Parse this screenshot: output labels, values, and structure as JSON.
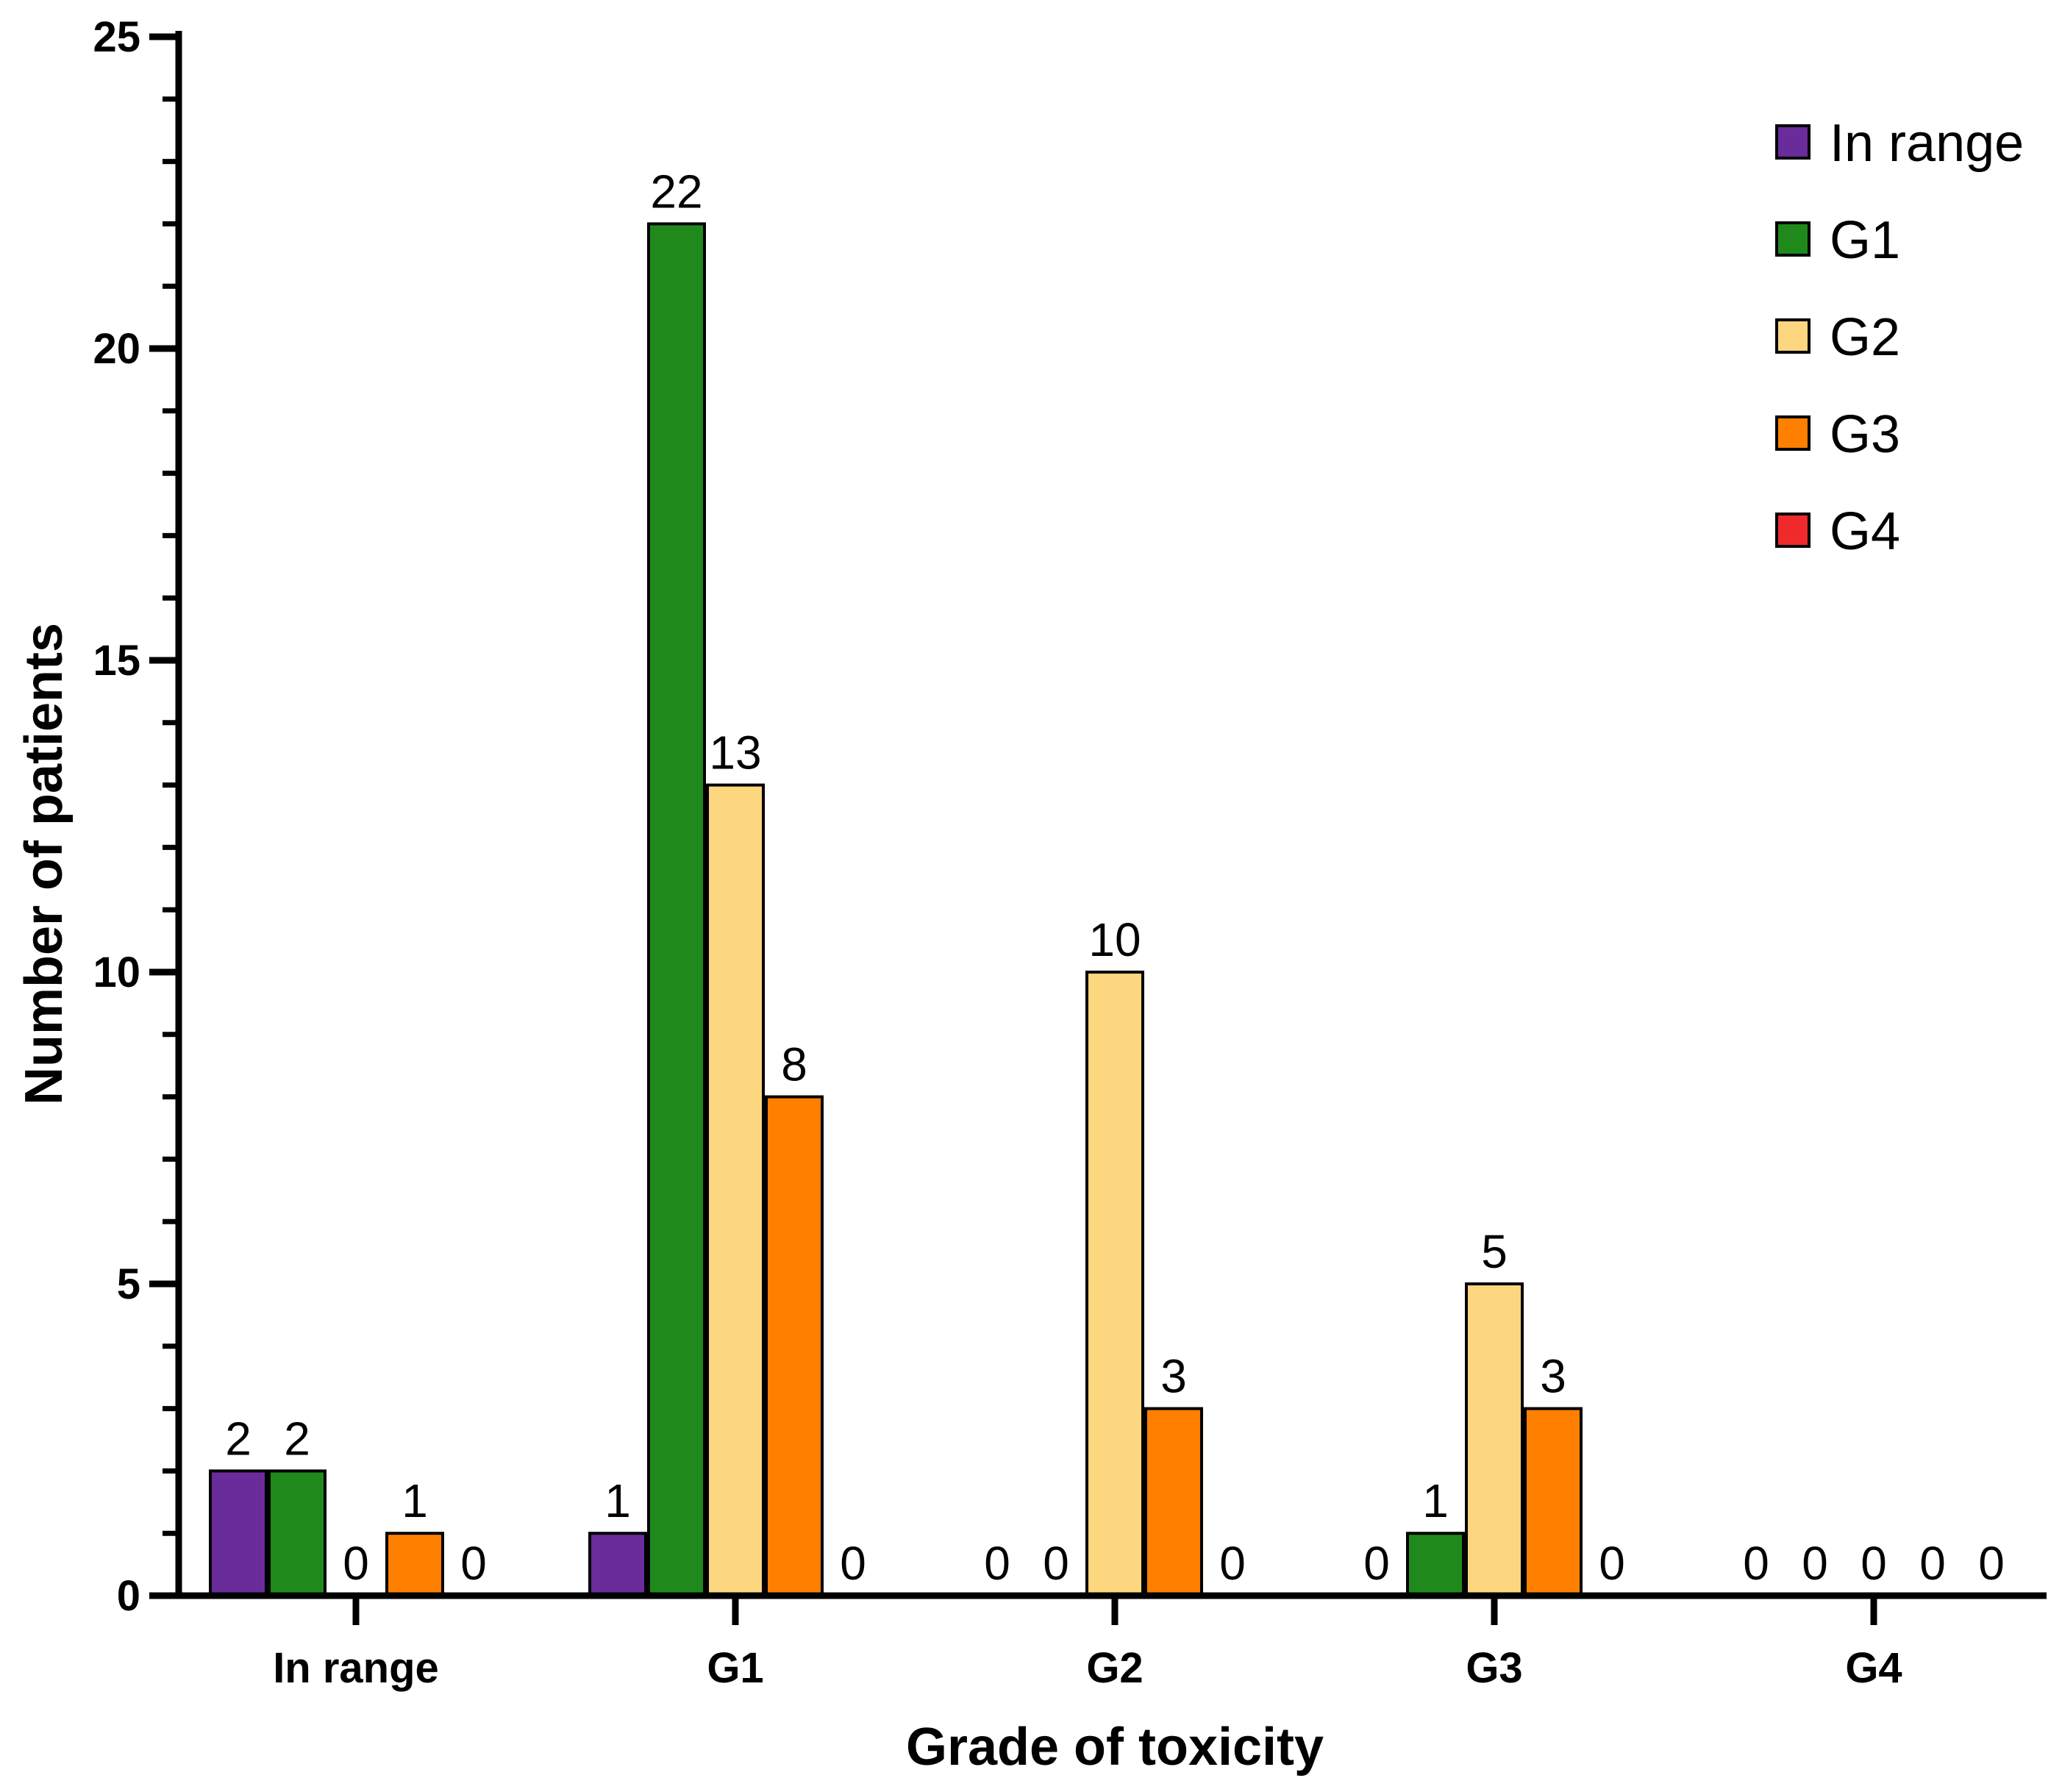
{
  "chart_data": {
    "type": "bar",
    "title": "",
    "xlabel": "Grade of toxicity",
    "ylabel": "Number of patients",
    "ylim": [
      0,
      25
    ],
    "yticks": [
      "0",
      "5",
      "10",
      "15",
      "20",
      "25"
    ],
    "categories": [
      "In range",
      "G1",
      "G2",
      "G3",
      "G4"
    ],
    "legend_position": "top-right",
    "series": [
      {
        "name": "In range",
        "color": "#6a2b9b",
        "values": [
          2,
          1,
          0,
          0,
          0
        ]
      },
      {
        "name": "G1",
        "color": "#1f8a1b",
        "values": [
          2,
          22,
          0,
          1,
          0
        ]
      },
      {
        "name": "G2",
        "color": "#fdd680",
        "values": [
          0,
          13,
          10,
          5,
          0
        ]
      },
      {
        "name": "G3",
        "color": "#ff8000",
        "values": [
          1,
          8,
          3,
          3,
          0
        ]
      },
      {
        "name": "G4",
        "color": "#f02a2a",
        "values": [
          0,
          0,
          0,
          0,
          0
        ]
      }
    ]
  }
}
